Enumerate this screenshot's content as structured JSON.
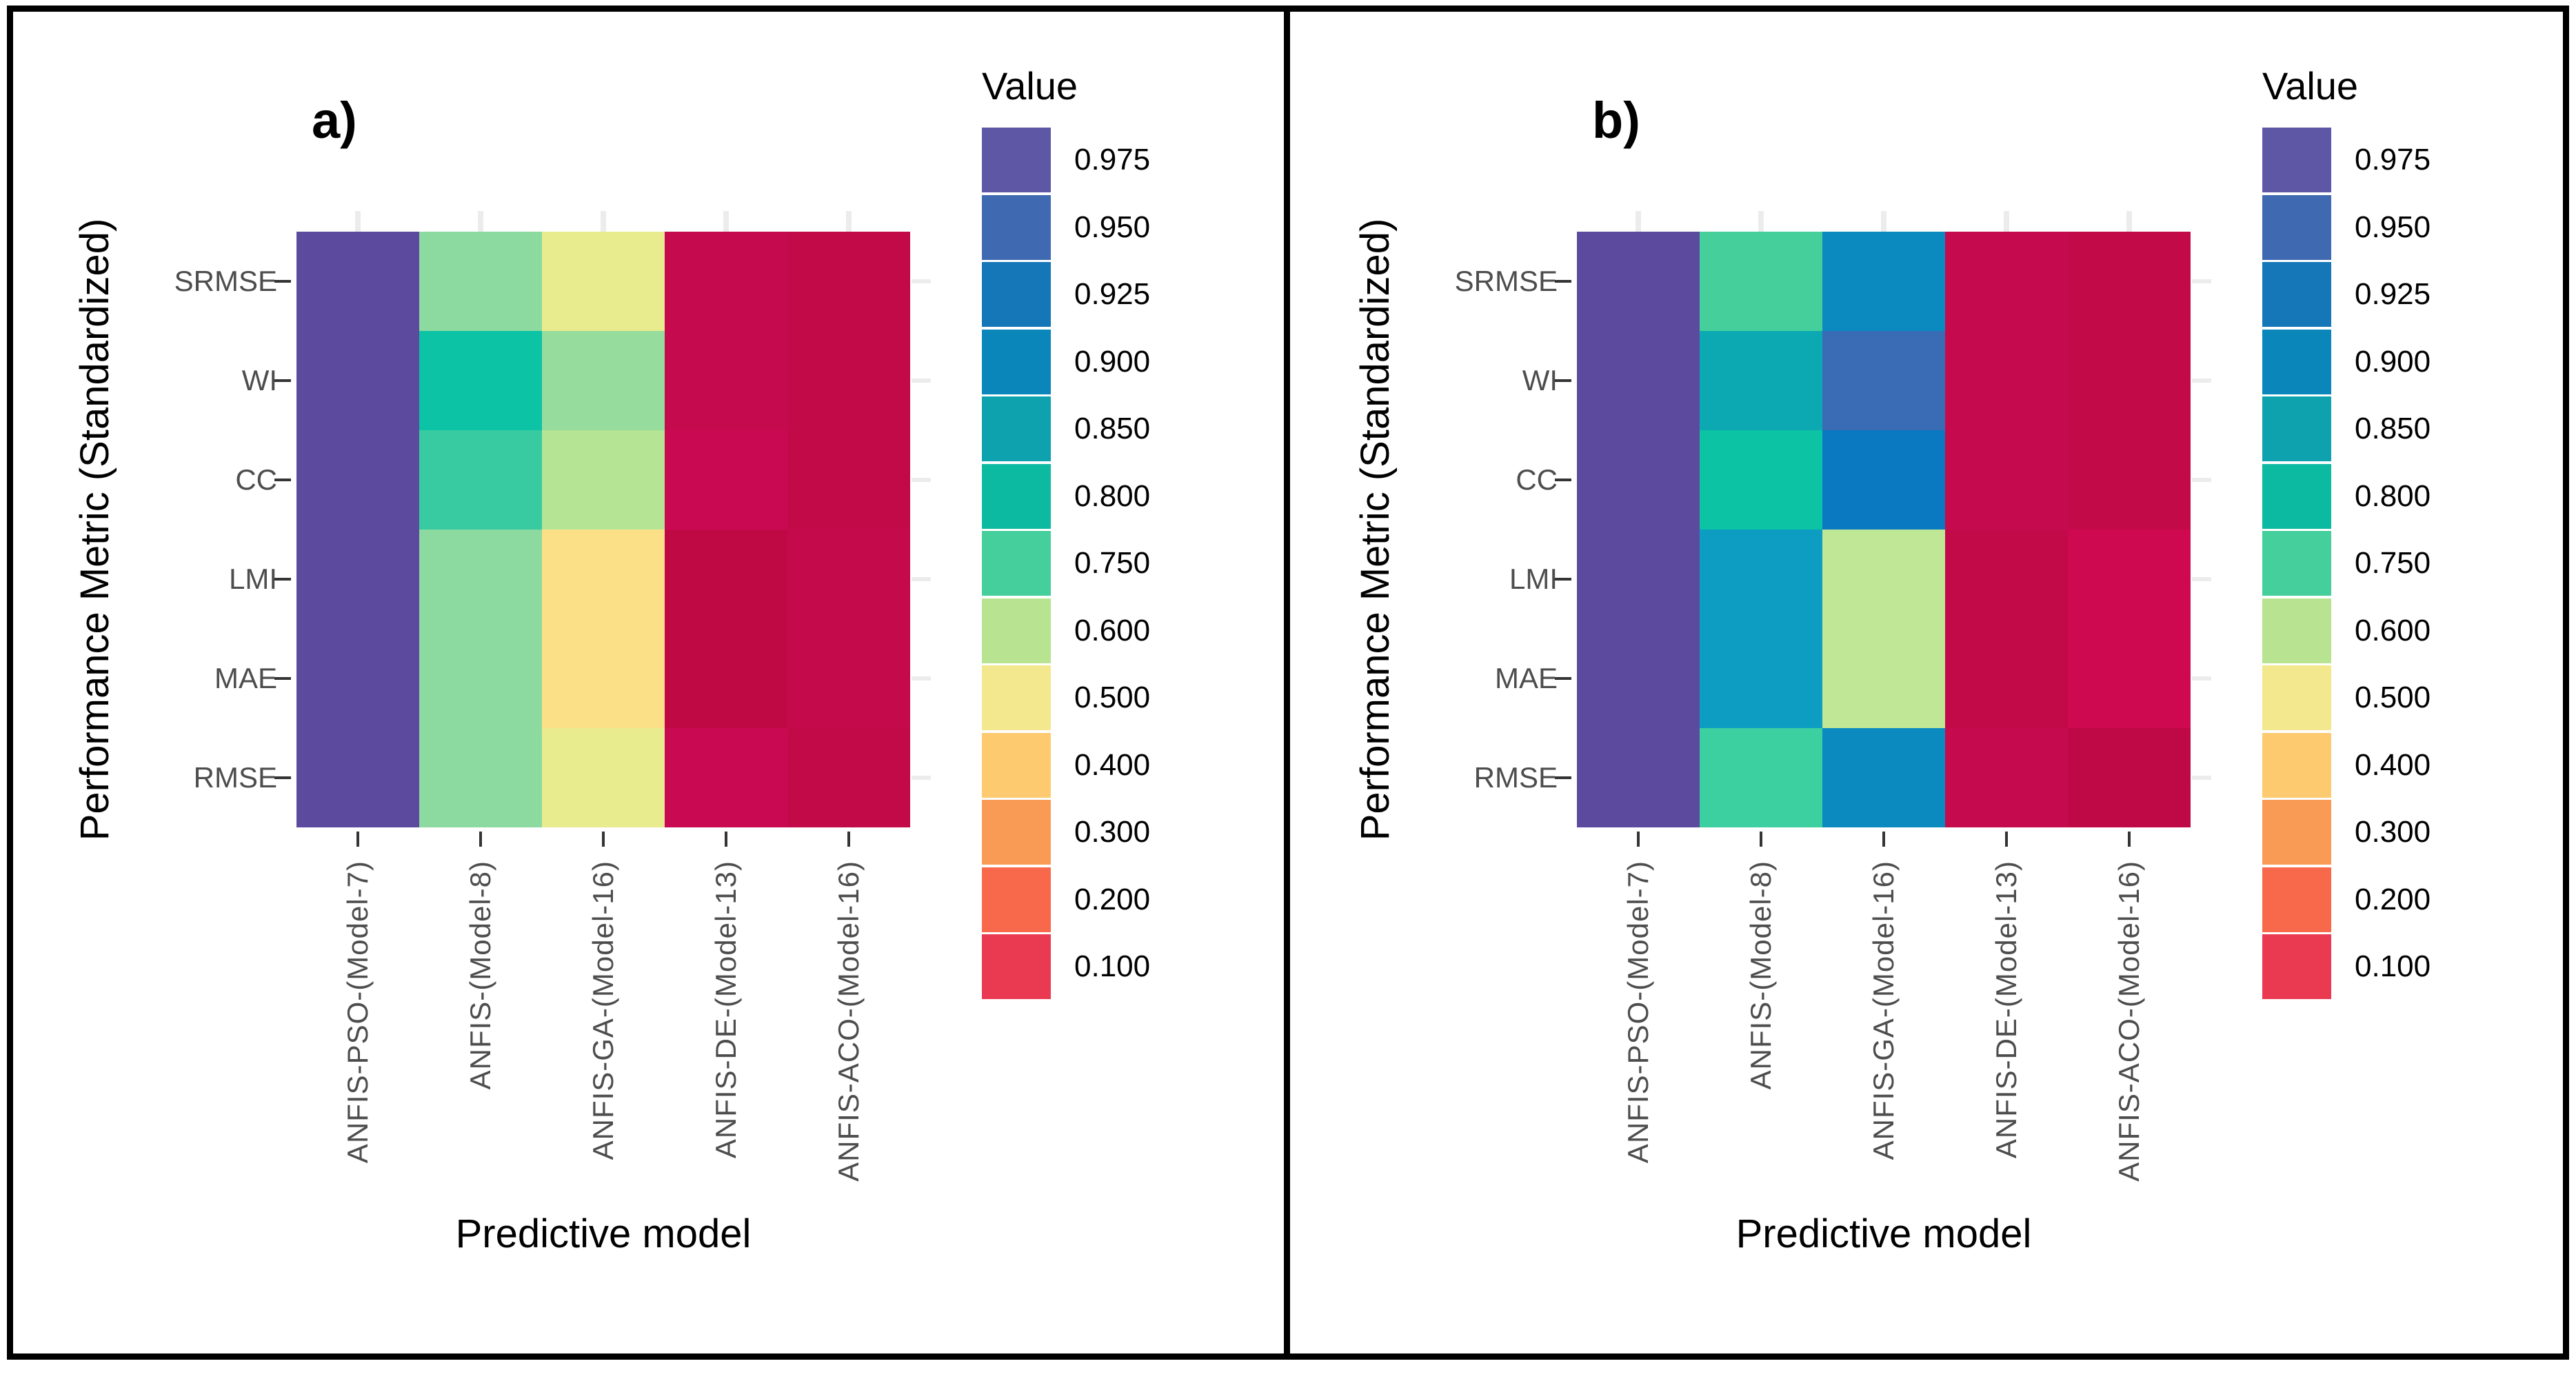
{
  "figure": {
    "type": "two-panel standardized performance-metric heatmaps",
    "background": "#ffffff",
    "border_color": "#000000"
  },
  "colors": {
    "tick_label": "#4d4d4d",
    "axis_title": "#000000",
    "tick_mark": "#343434",
    "grid_tick": "#ececec",
    "panel_letter": "#000000"
  },
  "legend": {
    "title": "Value",
    "entries": [
      {
        "label": "0.975",
        "color": "#5e57a6"
      },
      {
        "label": "0.950",
        "color": "#3f69b1"
      },
      {
        "label": "0.925",
        "color": "#1576b8"
      },
      {
        "label": "0.900",
        "color": "#0b86ba"
      },
      {
        "label": "0.850",
        "color": "#0da2ae"
      },
      {
        "label": "0.800",
        "color": "#0cbaa2"
      },
      {
        "label": "0.750",
        "color": "#45cf9c"
      },
      {
        "label": "0.600",
        "color": "#b8e491"
      },
      {
        "label": "0.500",
        "color": "#f3e88e"
      },
      {
        "label": "0.400",
        "color": "#fdca70"
      },
      {
        "label": "0.300",
        "color": "#fa9b55"
      },
      {
        "label": "0.200",
        "color": "#f8694c"
      },
      {
        "label": "0.100",
        "color": "#e93a52"
      }
    ]
  },
  "panels": [
    {
      "label": "a)",
      "x_title": "Predictive model",
      "y_title": "Performance Metric (Standardized)",
      "x_labels": [
        "ANFIS-PSO-(Model-7)",
        "ANFIS-(Model-8)",
        "ANFIS-GA-(Model-16)",
        "ANFIS-DE-(Model-13)",
        "ANFIS-ACO-(Model-16)"
      ],
      "y_labels": [
        "SRMSE",
        "WI",
        "CC",
        "LMI",
        "MAE",
        "RMSE"
      ],
      "cell_colors": [
        [
          "#5c4a9e",
          "#8cdaa0",
          "#e9ec8e",
          "#c50b4d",
          "#c20a49"
        ],
        [
          "#5c4a9e",
          "#0cc3a6",
          "#96dc9d",
          "#c50b4d",
          "#c20a49"
        ],
        [
          "#5c4a9e",
          "#38cba1",
          "#b5e594",
          "#c90a52",
          "#c20a49"
        ],
        [
          "#5c4a9e",
          "#8cdaa0",
          "#fce088",
          "#bf0944",
          "#c40a4b"
        ],
        [
          "#5c4a9e",
          "#8cdaa0",
          "#fce088",
          "#bf0944",
          "#c40a4b"
        ],
        [
          "#5c4a9e",
          "#8cdaa0",
          "#e9ec8e",
          "#c90a52",
          "#c20a49"
        ]
      ]
    },
    {
      "label": "b)",
      "x_title": "Predictive model",
      "y_title": "Performance Metric (Standardized)",
      "x_labels": [
        "ANFIS-PSO-(Model-7)",
        "ANFIS-(Model-8)",
        "ANFIS-GA-(Model-16)",
        "ANFIS-DE-(Model-13)",
        "ANFIS-ACO-(Model-16)"
      ],
      "y_labels": [
        "SRMSE",
        "WI",
        "CC",
        "LMI",
        "MAE",
        "RMSE"
      ],
      "cell_colors": [
        [
          "#5c4a9e",
          "#44cf9b",
          "#0b8ac0",
          "#c50b4d",
          "#c20a49"
        ],
        [
          "#5c4a9e",
          "#0ca9b2",
          "#3a6cb5",
          "#c50b4d",
          "#c20a49"
        ],
        [
          "#5c4a9e",
          "#0cc3a4",
          "#0b78c2",
          "#c50b4d",
          "#c20a49"
        ],
        [
          "#5c4a9e",
          "#0d9dc2",
          "#bfe795",
          "#c20a49",
          "#ce0950"
        ],
        [
          "#5c4a9e",
          "#0d9dc2",
          "#bfe795",
          "#c20a49",
          "#ce0950"
        ],
        [
          "#5c4a9e",
          "#3ccf9f",
          "#0b8ac0",
          "#c50b4d",
          "#bf0946"
        ]
      ]
    }
  ],
  "chart_data": [
    {
      "type": "heatmap",
      "panel": "a",
      "title": "a)",
      "xlabel": "Predictive model",
      "ylabel": "Performance Metric (Standardized)",
      "x": [
        "ANFIS-PSO-(Model-7)",
        "ANFIS-(Model-8)",
        "ANFIS-GA-(Model-16)",
        "ANFIS-DE-(Model-13)",
        "ANFIS-ACO-(Model-16)"
      ],
      "y": [
        "SRMSE",
        "WI",
        "CC",
        "LMI",
        "MAE",
        "RMSE"
      ],
      "values_estimated_from_color": true,
      "values": [
        [
          0.98,
          0.72,
          0.52,
          0.05,
          0.03
        ],
        [
          0.98,
          0.8,
          0.68,
          0.05,
          0.03
        ],
        [
          0.98,
          0.77,
          0.6,
          0.06,
          0.03
        ],
        [
          0.98,
          0.72,
          0.45,
          0.02,
          0.04
        ],
        [
          0.98,
          0.72,
          0.45,
          0.02,
          0.04
        ],
        [
          0.98,
          0.72,
          0.52,
          0.06,
          0.03
        ]
      ],
      "legend_title": "Value",
      "legend_ticks": [
        0.975,
        0.95,
        0.925,
        0.9,
        0.85,
        0.8,
        0.75,
        0.6,
        0.5,
        0.4,
        0.3,
        0.2,
        0.1
      ],
      "legend_position": "right",
      "grid": false
    },
    {
      "type": "heatmap",
      "panel": "b",
      "title": "b)",
      "xlabel": "Predictive model",
      "ylabel": "Performance Metric (Standardized)",
      "x": [
        "ANFIS-PSO-(Model-7)",
        "ANFIS-(Model-8)",
        "ANFIS-GA-(Model-16)",
        "ANFIS-DE-(Model-13)",
        "ANFIS-ACO-(Model-16)"
      ],
      "y": [
        "SRMSE",
        "WI",
        "CC",
        "LMI",
        "MAE",
        "RMSE"
      ],
      "values_estimated_from_color": true,
      "values": [
        [
          0.98,
          0.75,
          0.9,
          0.05,
          0.03
        ],
        [
          0.98,
          0.85,
          0.95,
          0.05,
          0.03
        ],
        [
          0.98,
          0.8,
          0.93,
          0.05,
          0.03
        ],
        [
          0.98,
          0.87,
          0.6,
          0.03,
          0.06
        ],
        [
          0.98,
          0.87,
          0.6,
          0.03,
          0.06
        ],
        [
          0.98,
          0.76,
          0.9,
          0.05,
          0.02
        ]
      ],
      "legend_title": "Value",
      "legend_ticks": [
        0.975,
        0.95,
        0.925,
        0.9,
        0.85,
        0.8,
        0.75,
        0.6,
        0.5,
        0.4,
        0.3,
        0.2,
        0.1
      ],
      "legend_position": "right",
      "grid": false
    }
  ]
}
